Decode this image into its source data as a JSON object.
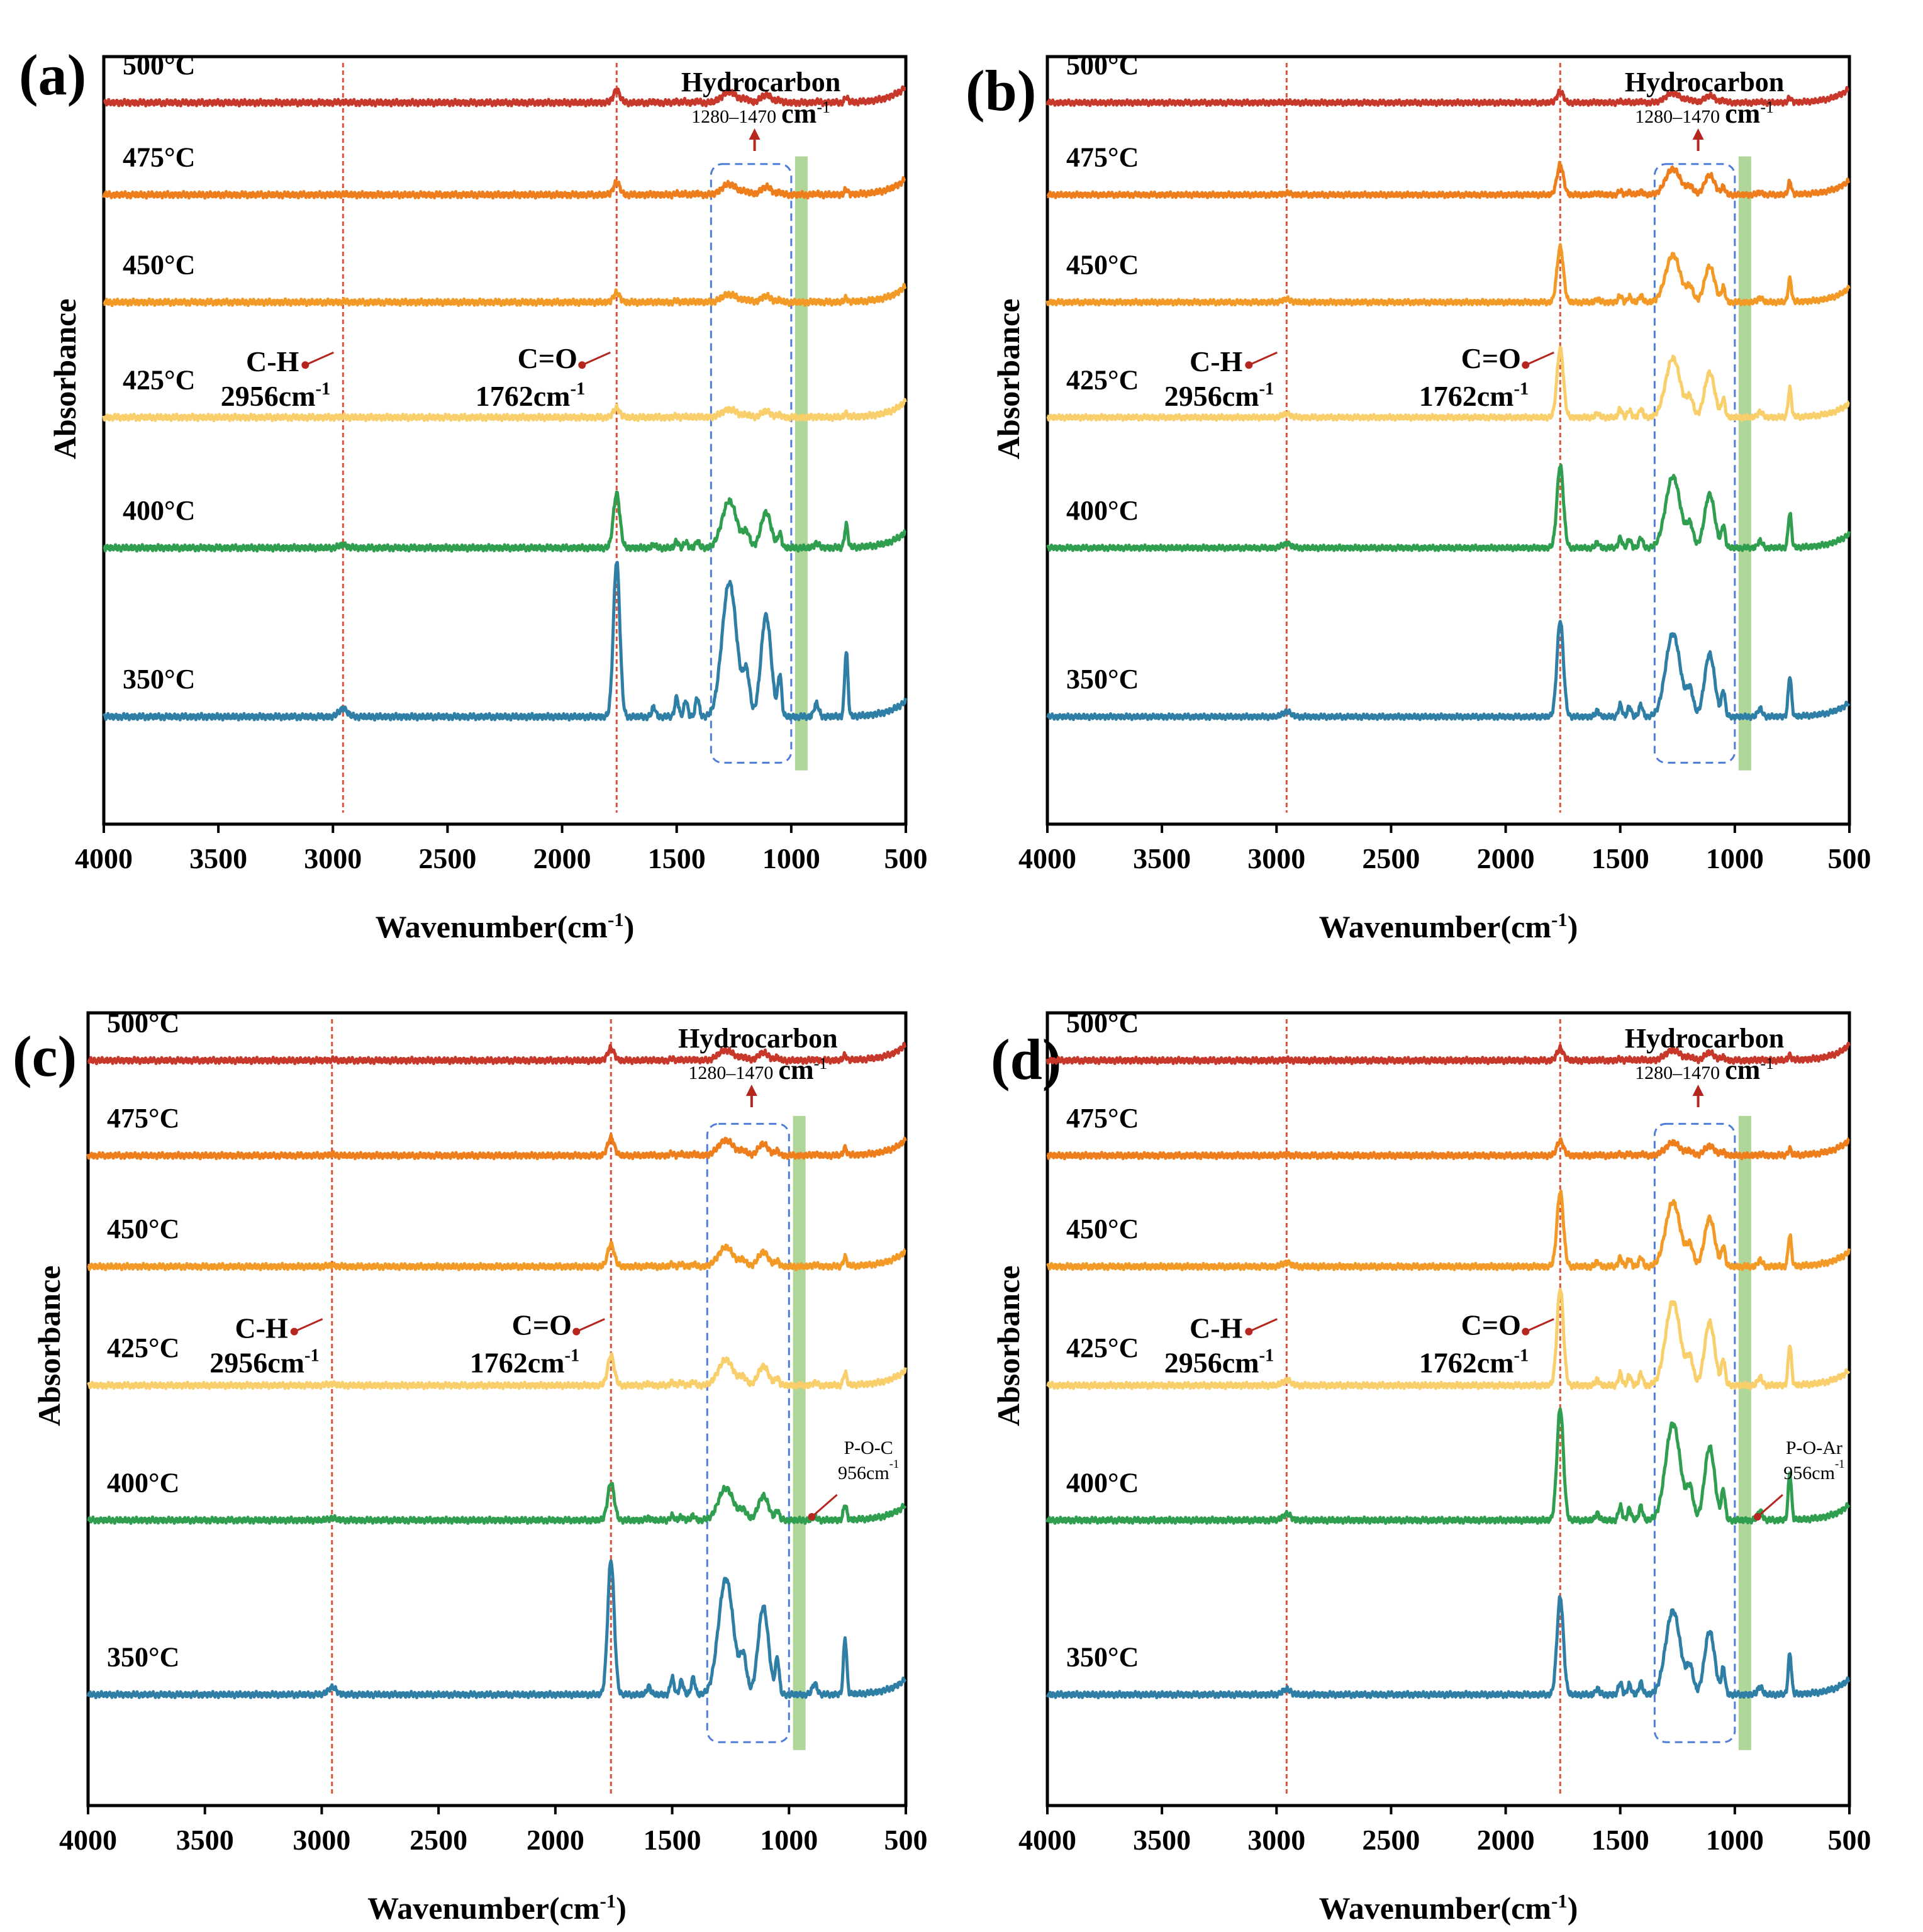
{
  "figure": {
    "colors": {
      "frame": "#000000",
      "ref_line": "#d9533b",
      "arrow": "#b5261e",
      "dashed_box": "#4f7ed8",
      "green_band": "#a9d18e"
    }
  },
  "chart_data": [
    {
      "type": "line",
      "panel": "(a)",
      "xlabel": "Wavenumber(cm",
      "xlabel_sup": "-1",
      "xlabel_end": ")",
      "ylabel": "Absorbance",
      "xlim": [
        4000,
        500
      ],
      "x_ticks": [
        "4000",
        "3500",
        "3000",
        "2500",
        "2000",
        "1500",
        "1000",
        "500"
      ],
      "hydrocarbon": {
        "title": "Hydrocarbon",
        "range": "1280–1470",
        "unit": "cm",
        "unit_sup": "-1",
        "box_range": [
          1350,
          1000
        ],
        "arrow_at": 1160
      },
      "green_band": 956,
      "ref_lines": [
        2956,
        1762
      ],
      "ch": {
        "label": "C-H",
        "value": "2956cm",
        "sup": "-1"
      },
      "co": {
        "label": "C=O",
        "value": "1762cm",
        "sup": "-1"
      },
      "series": [
        {
          "name": "500°C",
          "color": "#c7372a",
          "peak_scale": 0.08
        },
        {
          "name": "475°C",
          "color": "#ee7d1c",
          "peak_scale": 0.08
        },
        {
          "name": "450°C",
          "color": "#f29a25",
          "peak_scale": 0.06
        },
        {
          "name": "425°C",
          "color": "#f8cf6b",
          "peak_scale": 0.06
        },
        {
          "name": "400°C",
          "color": "#2f9e4f",
          "peak_scale": 0.35
        },
        {
          "name": "350°C",
          "color": "#2e7ea6",
          "peak_scale": 1.0
        }
      ]
    },
    {
      "type": "line",
      "panel": "(b)",
      "xlabel": "Wavenumber(cm",
      "xlabel_sup": "-1",
      "xlabel_end": ")",
      "ylabel": "Absorbance",
      "xlim": [
        4000,
        500
      ],
      "x_ticks": [
        "4000",
        "3500",
        "3000",
        "2500",
        "2000",
        "1500",
        "1000",
        "500"
      ],
      "hydrocarbon": {
        "title": "Hydrocarbon",
        "range": "1280–1470",
        "unit": "cm",
        "unit_sup": "-1",
        "box_range": [
          1350,
          1000
        ],
        "arrow_at": 1160
      },
      "green_band": 956,
      "ref_lines": [
        2956,
        1762
      ],
      "ch": {
        "label": "C-H",
        "value": "2956cm",
        "sup": "-1"
      },
      "co": {
        "label": "C=O",
        "value": "1762cm",
        "sup": "-1"
      },
      "series": [
        {
          "name": "500°C",
          "color": "#c7372a",
          "peak_scale": 0.08
        },
        {
          "name": "475°C",
          "color": "#ee7d1c",
          "peak_scale": 0.22
        },
        {
          "name": "450°C",
          "color": "#f29a25",
          "peak_scale": 0.4
        },
        {
          "name": "425°C",
          "color": "#f8cf6b",
          "peak_scale": 0.5
        },
        {
          "name": "400°C",
          "color": "#2f9e4f",
          "peak_scale": 0.6
        },
        {
          "name": "350°C",
          "color": "#2e7ea6",
          "peak_scale": 0.7
        }
      ]
    },
    {
      "type": "line",
      "panel": "(c)",
      "xlabel": "Wavenumber(cm",
      "xlabel_sup": "-1",
      "xlabel_end": ")",
      "ylabel": "Absorbance",
      "xlim": [
        4000,
        500
      ],
      "x_ticks": [
        "4000",
        "3500",
        "3000",
        "2500",
        "2000",
        "1500",
        "1000",
        "500"
      ],
      "hydrocarbon": {
        "title": "Hydrocarbon",
        "range": "1280–1470",
        "unit": "cm",
        "unit_sup": "-1",
        "box_range": [
          1350,
          1000
        ],
        "arrow_at": 1160
      },
      "green_band": 956,
      "ref_lines": [
        2956,
        1762
      ],
      "ch": {
        "label": "C-H",
        "value": "2956cm",
        "sup": "-1"
      },
      "co": {
        "label": "C=O",
        "value": "1762cm",
        "sup": "-1"
      },
      "poc": {
        "label": "P-O-C",
        "value": "956cm",
        "sup": "-1"
      },
      "series": [
        {
          "name": "500°C",
          "color": "#c7372a",
          "peak_scale": 0.08
        },
        {
          "name": "475°C",
          "color": "#ee7d1c",
          "peak_scale": 0.12
        },
        {
          "name": "450°C",
          "color": "#f29a25",
          "peak_scale": 0.15
        },
        {
          "name": "425°C",
          "color": "#f8cf6b",
          "peak_scale": 0.2
        },
        {
          "name": "400°C",
          "color": "#2f9e4f",
          "peak_scale": 0.25
        },
        {
          "name": "350°C",
          "color": "#2e7ea6",
          "peak_scale": 0.9
        }
      ]
    },
    {
      "type": "line",
      "panel": "(d)",
      "xlabel": "Wavenumber(cm",
      "xlabel_sup": "-1",
      "xlabel_end": ")",
      "ylabel": "Absorbance",
      "xlim": [
        4000,
        500
      ],
      "x_ticks": [
        "4000",
        "3500",
        "3000",
        "2500",
        "2000",
        "1500",
        "1000",
        "500"
      ],
      "hydrocarbon": {
        "title": "Hydrocarbon",
        "range": "1280–1470",
        "unit": "cm",
        "unit_sup": "-1",
        "box_range": [
          1350,
          1000
        ],
        "arrow_at": 1160
      },
      "green_band": 956,
      "ref_lines": [
        2956,
        1762
      ],
      "ch": {
        "label": "C-H",
        "value": "2956cm",
        "sup": "-1"
      },
      "co": {
        "label": "C=O",
        "value": "1762cm",
        "sup": "-1"
      },
      "poc": {
        "label": "P-O-Ar",
        "value": "956cm",
        "sup": "-1"
      },
      "series": [
        {
          "name": "500°C",
          "color": "#c7372a",
          "peak_scale": 0.08
        },
        {
          "name": "475°C",
          "color": "#ee7d1c",
          "peak_scale": 0.1
        },
        {
          "name": "450°C",
          "color": "#f29a25",
          "peak_scale": 0.5
        },
        {
          "name": "425°C",
          "color": "#f8cf6b",
          "peak_scale": 0.65
        },
        {
          "name": "400°C",
          "color": "#2f9e4f",
          "peak_scale": 0.75
        },
        {
          "name": "350°C",
          "color": "#2e7ea6",
          "peak_scale": 0.65
        }
      ]
    }
  ]
}
